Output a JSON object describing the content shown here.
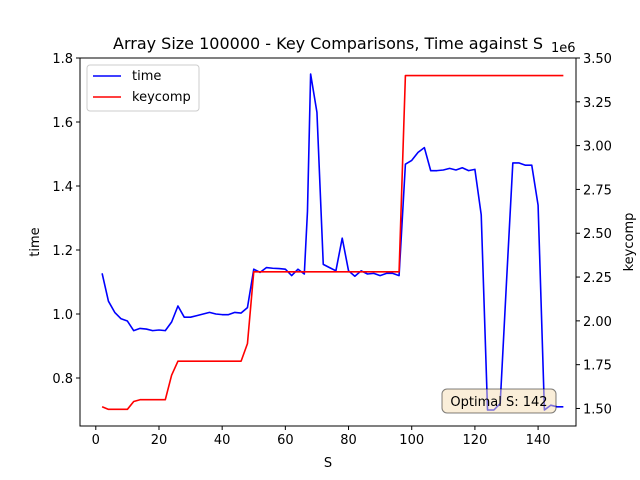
{
  "chart_data": {
    "type": "line",
    "title": "Array Size 100000 - Key Comparisons, Time against S",
    "xlabel": "S",
    "ylabel_left": "time",
    "ylabel_right": "keycomp",
    "right_axis_offset_label": "1e6",
    "xlim": [
      -5,
      152
    ],
    "ylim_left": [
      0.65,
      1.8
    ],
    "ylim_right": [
      1.4,
      3.5
    ],
    "x_ticks": [
      0,
      20,
      40,
      60,
      80,
      100,
      120,
      140
    ],
    "x_tick_labels": [
      "0",
      "20",
      "40",
      "60",
      "80",
      "100",
      "120",
      "140"
    ],
    "y_left_ticks": [
      0.8,
      1.0,
      1.2,
      1.4,
      1.6,
      1.8
    ],
    "y_left_tick_labels": [
      "0.8",
      "1.0",
      "1.2",
      "1.4",
      "1.6",
      "1.8"
    ],
    "y_right_ticks": [
      1.5,
      1.75,
      2.0,
      2.25,
      2.5,
      2.75,
      3.0,
      3.25,
      3.5
    ],
    "y_right_tick_labels": [
      "1.50",
      "1.75",
      "2.00",
      "2.25",
      "2.50",
      "2.75",
      "3.00",
      "3.25",
      "3.50"
    ],
    "grid": false,
    "legend_position": "upper-left",
    "series": [
      {
        "name": "time",
        "color": "#0000ff",
        "axis": "left",
        "x": [
          2,
          4,
          6,
          8,
          10,
          12,
          14,
          16,
          18,
          20,
          22,
          24,
          26,
          28,
          30,
          32,
          34,
          36,
          38,
          40,
          42,
          44,
          46,
          48,
          50,
          52,
          54,
          56,
          58,
          60,
          62,
          64,
          66,
          67,
          68,
          70,
          72,
          74,
          76,
          78,
          80,
          82,
          84,
          86,
          88,
          90,
          92,
          94,
          96,
          98,
          100,
          102,
          104,
          106,
          108,
          110,
          112,
          114,
          116,
          118,
          120,
          122,
          124,
          126,
          128,
          130,
          132,
          134,
          136,
          138,
          140,
          142,
          144,
          146,
          148
        ],
        "y": [
          1.127,
          1.04,
          1.005,
          0.985,
          0.978,
          0.948,
          0.955,
          0.953,
          0.948,
          0.95,
          0.948,
          0.975,
          1.025,
          0.99,
          0.99,
          0.995,
          1.0,
          1.005,
          1.0,
          0.998,
          0.998,
          1.005,
          1.003,
          1.02,
          1.14,
          1.13,
          1.145,
          1.143,
          1.142,
          1.14,
          1.12,
          1.14,
          1.125,
          1.32,
          1.75,
          1.63,
          1.155,
          1.145,
          1.135,
          1.237,
          1.135,
          1.118,
          1.135,
          1.125,
          1.127,
          1.12,
          1.127,
          1.127,
          1.12,
          1.468,
          1.48,
          1.505,
          1.52,
          1.448,
          1.448,
          1.45,
          1.455,
          1.45,
          1.457,
          1.448,
          1.452,
          1.31,
          0.7,
          0.7,
          0.72,
          1.1,
          1.472,
          1.472,
          1.465,
          1.465,
          1.34,
          0.7,
          0.715,
          0.71,
          0.71
        ]
      },
      {
        "name": "keycomp",
        "color": "#ff0000",
        "axis": "right",
        "x": [
          2,
          4,
          6,
          8,
          10,
          12,
          14,
          16,
          18,
          20,
          22,
          24,
          26,
          28,
          30,
          32,
          34,
          36,
          38,
          40,
          42,
          44,
          46,
          48,
          50,
          52,
          54,
          56,
          58,
          60,
          62,
          64,
          66,
          68,
          70,
          72,
          74,
          76,
          78,
          80,
          82,
          84,
          86,
          88,
          90,
          92,
          94,
          96,
          98,
          100,
          102,
          104,
          106,
          108,
          110,
          112,
          114,
          116,
          118,
          120,
          122,
          124,
          126,
          128,
          130,
          132,
          134,
          136,
          138,
          140,
          142,
          144,
          146,
          148
        ],
        "y": [
          1.51,
          1.495,
          1.495,
          1.495,
          1.495,
          1.54,
          1.55,
          1.55,
          1.55,
          1.55,
          1.55,
          1.69,
          1.77,
          1.77,
          1.77,
          1.77,
          1.77,
          1.77,
          1.77,
          1.77,
          1.77,
          1.77,
          1.77,
          1.87,
          2.28,
          2.28,
          2.28,
          2.28,
          2.28,
          2.28,
          2.28,
          2.28,
          2.28,
          2.28,
          2.28,
          2.28,
          2.28,
          2.28,
          2.28,
          2.28,
          2.28,
          2.28,
          2.28,
          2.28,
          2.28,
          2.28,
          2.28,
          2.28,
          3.4,
          3.4,
          3.4,
          3.4,
          3.4,
          3.4,
          3.4,
          3.4,
          3.4,
          3.4,
          3.4,
          3.4,
          3.4,
          3.4,
          3.4,
          3.4,
          3.4,
          3.4,
          3.4,
          3.4,
          3.4,
          3.4,
          3.4,
          3.4,
          3.4,
          3.4
        ]
      }
    ],
    "annotation": {
      "text": "Optimal S: 142",
      "background": "#f5deb3"
    }
  }
}
